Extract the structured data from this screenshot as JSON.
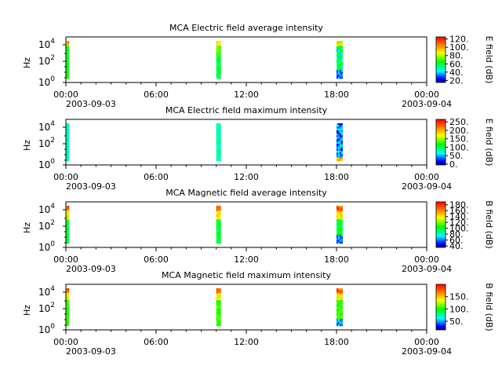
{
  "chart_data": [
    {
      "type": "heatmap",
      "title": "MCA  Electric field average intensity",
      "ylabel": "Hz",
      "yscale": "log",
      "ytick_exponents": [
        "0",
        "2",
        "4"
      ],
      "xlim": [
        "2003-09-03 00:00",
        "2003-09-04 00:00"
      ],
      "xtick_labels": [
        "00:00",
        "06:00",
        "12:00",
        "18:00",
        "00:00"
      ],
      "xdate_labels": [
        "2003-09-03",
        "2003-09-04"
      ],
      "colorbar_label": "E field (dB)",
      "colorbar_ticks": [
        "20.",
        "40.",
        "60.",
        "80.",
        "100.",
        "120."
      ],
      "colorbar_range": [
        15,
        125
      ],
      "data_intervals": [
        [
          "00:00",
          "00:12"
        ],
        [
          "10:00",
          "10:18"
        ],
        [
          "18:00",
          "18:24"
        ]
      ],
      "pattern": "avg"
    },
    {
      "type": "heatmap",
      "title": "MCA  Electric field maximum intensity",
      "ylabel": "Hz",
      "yscale": "log",
      "ytick_exponents": [
        "0",
        "2",
        "4"
      ],
      "xlim": [
        "2003-09-03 00:00",
        "2003-09-04 00:00"
      ],
      "xtick_labels": [
        "00:00",
        "06:00",
        "12:00",
        "18:00",
        "00:00"
      ],
      "xdate_labels": [
        "2003-09-03",
        "2003-09-04"
      ],
      "colorbar_label": "E field (dB)",
      "colorbar_ticks": [
        "0.",
        "50.",
        "100.",
        "150.",
        "200.",
        "250."
      ],
      "colorbar_range": [
        -5,
        265
      ],
      "data_intervals": [
        [
          "00:00",
          "00:12"
        ],
        [
          "10:00",
          "10:18"
        ],
        [
          "18:00",
          "18:24"
        ]
      ],
      "pattern": "max"
    },
    {
      "type": "heatmap",
      "title": "MCA  Magnetic field average intensity",
      "ylabel": "Hz",
      "yscale": "log",
      "ytick_exponents": [
        "0",
        "2",
        "4"
      ],
      "xlim": [
        "2003-09-03 00:00",
        "2003-09-04 00:00"
      ],
      "xtick_labels": [
        "00:00",
        "06:00",
        "12:00",
        "18:00",
        "00:00"
      ],
      "xdate_labels": [
        "2003-09-03",
        "2003-09-04"
      ],
      "colorbar_label": "B field (dB)",
      "colorbar_ticks": [
        "40.",
        "60.",
        "80.",
        "100.",
        "120.",
        "140.",
        "160.",
        "180."
      ],
      "colorbar_range": [
        35,
        190
      ],
      "data_intervals": [
        [
          "00:00",
          "00:12"
        ],
        [
          "10:00",
          "10:18"
        ],
        [
          "18:00",
          "18:24"
        ]
      ],
      "pattern": "bavg"
    },
    {
      "type": "heatmap",
      "title": "MCA  Magnetic field maximum intensity",
      "ylabel": "Hz",
      "yscale": "log",
      "ytick_exponents": [
        "0",
        "2",
        "4"
      ],
      "xlim": [
        "2003-09-03 00:00",
        "2003-09-04 00:00"
      ],
      "xtick_labels": [
        "00:00",
        "06:00",
        "12:00",
        "18:00",
        "00:00"
      ],
      "xdate_labels": [
        "2003-09-03",
        "2003-09-04"
      ],
      "colorbar_label": "B field (dB)",
      "colorbar_ticks": [
        "50.",
        "100.",
        "150."
      ],
      "colorbar_range": [
        15,
        200
      ],
      "data_intervals": [
        [
          "00:00",
          "00:12"
        ],
        [
          "10:00",
          "10:18"
        ],
        [
          "18:00",
          "18:24"
        ]
      ],
      "pattern": "bmax"
    }
  ]
}
